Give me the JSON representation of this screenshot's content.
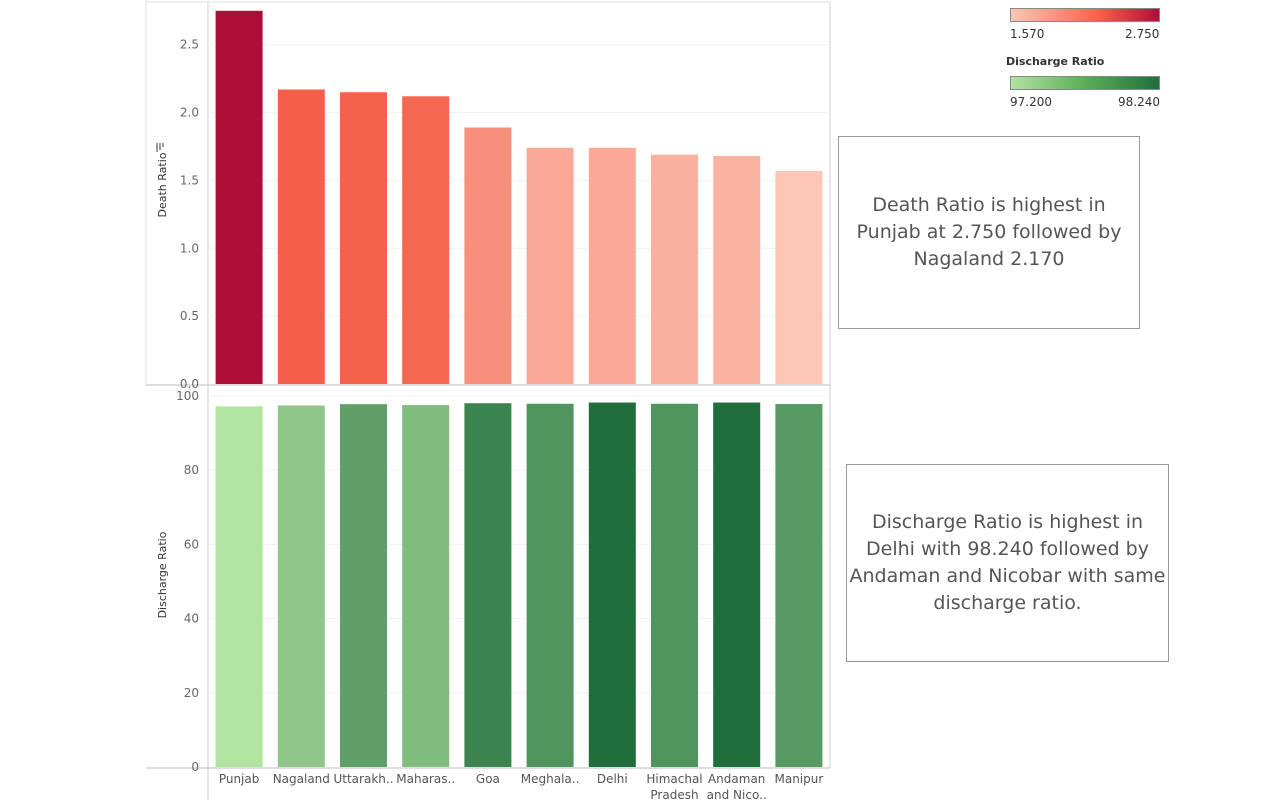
{
  "chart_data": [
    {
      "type": "bar",
      "ylabel": "Death Ratio",
      "categories": [
        "Punjab",
        "Nagaland",
        "Uttarakh..",
        "Maharas..",
        "Goa",
        "Meghala..",
        "Delhi",
        "Himachal Pradesh",
        "Andaman and Nico..",
        "Manipur"
      ],
      "values": [
        2.75,
        2.17,
        2.15,
        2.12,
        1.89,
        1.74,
        1.74,
        1.69,
        1.68,
        1.57
      ],
      "ylim": [
        0,
        2.8
      ],
      "yticks": [
        "0.0",
        "0.5",
        "1.0",
        "1.5",
        "2.0",
        "2.5"
      ],
      "color_scale": {
        "low": "#fdc6b5",
        "mid": "#f4604a",
        "high": "#ad0e38"
      }
    },
    {
      "type": "bar",
      "ylabel": "Discharge Ratio",
      "categories": [
        "Punjab",
        "Nagaland",
        "Uttarakh..",
        "Maharas..",
        "Goa",
        "Meghala..",
        "Delhi",
        "Himachal Pradesh",
        "Andaman and Nico..",
        "Manipur"
      ],
      "values": [
        97.2,
        97.45,
        97.8,
        97.55,
        98.05,
        97.9,
        98.24,
        97.9,
        98.24,
        97.85
      ],
      "ylim": [
        0,
        100
      ],
      "yticks": [
        "0",
        "20",
        "40",
        "60",
        "80",
        "100"
      ],
      "color_scale": {
        "low": "#b1e3a1",
        "high": "#216e3d"
      }
    }
  ],
  "legends": {
    "death": {
      "min": "1.570",
      "max": "2.750"
    },
    "discharge": {
      "title": "Discharge Ratio",
      "min": "97.200",
      "max": "98.240"
    }
  },
  "annotations": {
    "death": "Death Ratio is highest in Punjab at 2.750 followed by Nagaland 2.170",
    "discharge": "Discharge Ratio is highest in Delhi with 98.240 followed by Andaman and Nicobar with same discharge ratio."
  }
}
